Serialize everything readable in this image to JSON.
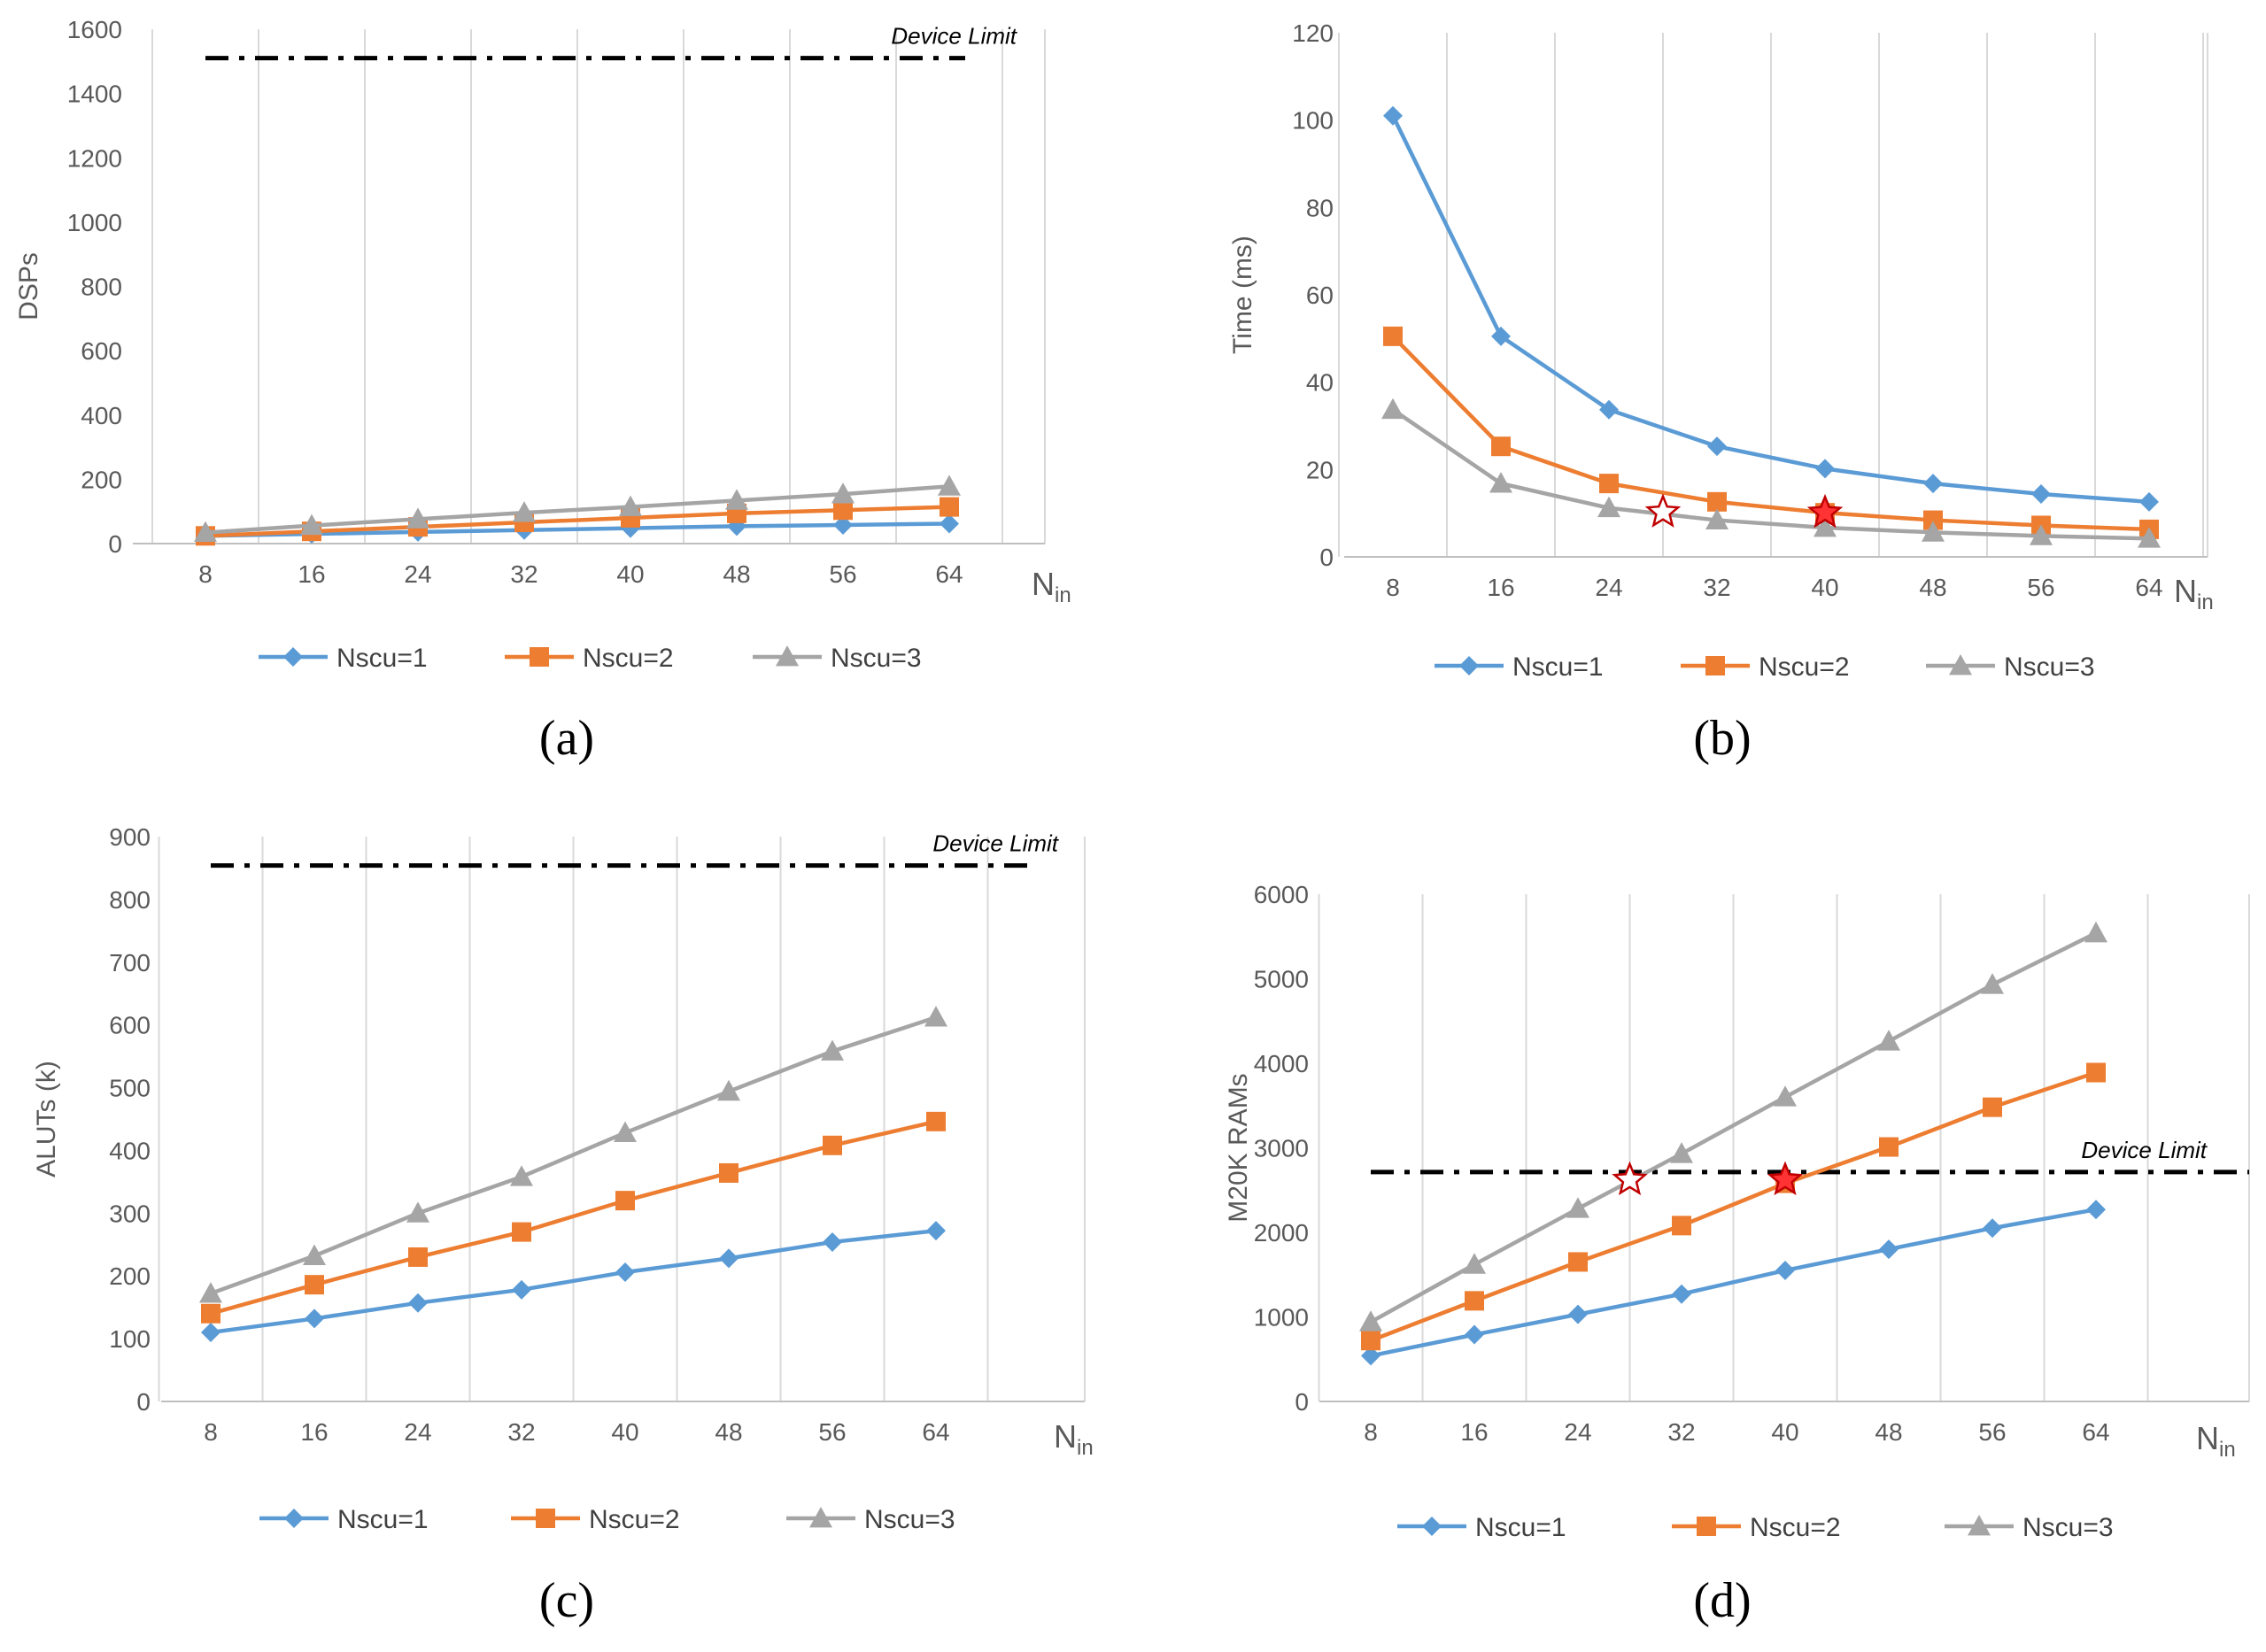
{
  "colors": {
    "nscu1": "#5B9BD5",
    "nscu2": "#ED7D31",
    "nscu3": "#A5A5A5",
    "grid": "#D9D9D9",
    "axis": "#BFBFBF",
    "limit": "#000000",
    "star_fill": "#FF3333",
    "star_stroke": "#C00000",
    "star_hollow": "#FFFFFF"
  },
  "chart_data": [
    {
      "id": "a",
      "type": "line",
      "caption": "(a)",
      "ylabel": "DSPs",
      "xlabel": "N",
      "xlabel_sub": "in",
      "categories": [
        "8",
        "16",
        "24",
        "32",
        "40",
        "48",
        "56",
        "64"
      ],
      "ylim": [
        0,
        1600
      ],
      "yticks": [
        "0",
        "200",
        "400",
        "600",
        "800",
        "1000",
        "1200",
        "1400",
        "1600"
      ],
      "grid": "vertical",
      "device_limit": {
        "value": 1510,
        "label": "Device Limit"
      },
      "series": [
        {
          "name": "Nscu=1",
          "marker": "diamond",
          "values": [
            24,
            30,
            36,
            42,
            48,
            54,
            58,
            62
          ]
        },
        {
          "name": "Nscu=2",
          "marker": "square",
          "values": [
            24,
            38,
            52,
            66,
            80,
            94,
            104,
            114
          ]
        },
        {
          "name": "Nscu=3",
          "marker": "triangle",
          "values": [
            34,
            56,
            76,
            96,
            114,
            134,
            154,
            178
          ]
        }
      ],
      "stars": []
    },
    {
      "id": "b",
      "type": "line",
      "caption": "(b)",
      "ylabel": "Time (ms)",
      "xlabel": "N",
      "xlabel_sub": "in",
      "categories": [
        "8",
        "16",
        "24",
        "32",
        "40",
        "48",
        "56",
        "64"
      ],
      "ylim": [
        0,
        120
      ],
      "yticks": [
        "0",
        "20",
        "40",
        "60",
        "80",
        "100",
        "120"
      ],
      "grid": "vertical",
      "series": [
        {
          "name": "Nscu=1",
          "marker": "diamond",
          "values": [
            101,
            50.5,
            33.7,
            25.3,
            20.2,
            16.8,
            14.4,
            12.6
          ]
        },
        {
          "name": "Nscu=2",
          "marker": "square",
          "values": [
            50.5,
            25.3,
            16.8,
            12.6,
            10.1,
            8.4,
            7.2,
            6.3
          ]
        },
        {
          "name": "Nscu=3",
          "marker": "triangle",
          "values": [
            33.7,
            16.8,
            11.2,
            8.4,
            6.7,
            5.6,
            4.8,
            4.2
          ]
        }
      ],
      "stars": [
        {
          "x": 28,
          "y": 10.2,
          "style": "hollow"
        },
        {
          "x": 40,
          "y": 10.1,
          "style": "filled"
        }
      ]
    },
    {
      "id": "c",
      "type": "line",
      "caption": "(c)",
      "ylabel": "ALUTs (k)",
      "xlabel": "N",
      "xlabel_sub": "in",
      "categories": [
        "8",
        "16",
        "24",
        "32",
        "40",
        "48",
        "56",
        "64"
      ],
      "ylim": [
        0,
        900
      ],
      "yticks": [
        "0",
        "100",
        "200",
        "300",
        "400",
        "500",
        "600",
        "700",
        "800",
        "900"
      ],
      "grid": "vertical",
      "device_limit": {
        "value": 854,
        "label": "Device Limit"
      },
      "series": [
        {
          "name": "Nscu=1",
          "marker": "diamond",
          "values": [
            110,
            132,
            157,
            178,
            206,
            228,
            254,
            272
          ]
        },
        {
          "name": "Nscu=2",
          "marker": "square",
          "values": [
            140,
            186,
            230,
            270,
            320,
            364,
            408,
            446
          ]
        },
        {
          "name": "Nscu=3",
          "marker": "triangle",
          "values": [
            172,
            232,
            300,
            358,
            428,
            494,
            558,
            612
          ]
        }
      ],
      "stars": []
    },
    {
      "id": "d",
      "type": "line",
      "caption": "(d)",
      "ylabel": "M20K RAMs",
      "xlabel": "N",
      "xlabel_sub": "in",
      "categories": [
        "8",
        "16",
        "24",
        "32",
        "40",
        "48",
        "56",
        "64"
      ],
      "ylim": [
        0,
        6000
      ],
      "yticks": [
        "0",
        "1000",
        "2000",
        "3000",
        "4000",
        "5000",
        "6000"
      ],
      "grid": "vertical",
      "device_limit": {
        "value": 2713,
        "label": "Device Limit"
      },
      "series": [
        {
          "name": "Nscu=1",
          "marker": "diamond",
          "values": [
            540,
            790,
            1030,
            1270,
            1550,
            1800,
            2050,
            2270
          ]
        },
        {
          "name": "Nscu=2",
          "marker": "square",
          "values": [
            720,
            1190,
            1650,
            2080,
            2580,
            3010,
            3480,
            3890
          ]
        },
        {
          "name": "Nscu=3",
          "marker": "triangle",
          "values": [
            940,
            1620,
            2280,
            2930,
            3600,
            4260,
            4930,
            5540
          ]
        }
      ],
      "stars": [
        {
          "x": 28,
          "y": 2620,
          "style": "hollow"
        },
        {
          "x": 40,
          "y": 2620,
          "style": "filled"
        }
      ]
    }
  ]
}
